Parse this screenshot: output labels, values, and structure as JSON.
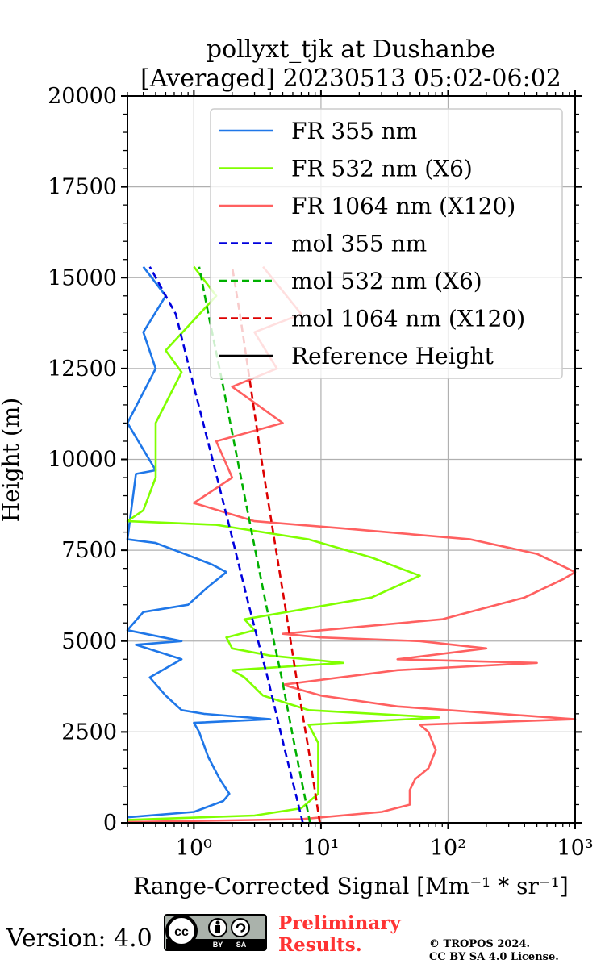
{
  "chart_data": {
    "type": "line",
    "title": [
      "pollyxt_tjk at Dushanbe",
      "[Averaged] 20230513 05:02-06:02"
    ],
    "xlabel": "Range-Corrected Signal [Mm⁻¹ * sr⁻¹]",
    "ylabel": "Height (m)",
    "xscale": "log",
    "xlim": [
      0.3,
      1000
    ],
    "ylim": [
      0,
      20000
    ],
    "xticks": [
      1,
      10,
      100,
      1000
    ],
    "xtick_labels": [
      "10⁰",
      "10¹",
      "10²",
      "10³"
    ],
    "yticks": [
      0,
      2500,
      5000,
      7500,
      10000,
      12500,
      15000,
      17500,
      20000
    ],
    "ytick_labels": [
      "0",
      "2500",
      "5000",
      "7500",
      "10000",
      "12500",
      "15000",
      "17500",
      "20000"
    ],
    "grid": true,
    "legend_position": "upper-right",
    "series": [
      {
        "name": "FR 355 nm",
        "color": "#1f77e8",
        "style": "solid",
        "points": [
          [
            0.3,
            150
          ],
          [
            1.0,
            300
          ],
          [
            1.7,
            600
          ],
          [
            1.9,
            800
          ],
          [
            1.6,
            1200
          ],
          [
            1.3,
            1800
          ],
          [
            1.1,
            2500
          ],
          [
            1.0,
            2750
          ],
          [
            4.0,
            2850
          ],
          [
            1.2,
            3000
          ],
          [
            0.8,
            3100
          ],
          [
            0.6,
            3500
          ],
          [
            0.45,
            4000
          ],
          [
            0.8,
            4500
          ],
          [
            0.35,
            4900
          ],
          [
            0.8,
            5000
          ],
          [
            0.3,
            5300
          ],
          [
            0.4,
            5800
          ],
          [
            0.9,
            6000
          ],
          [
            1.3,
            6500
          ],
          [
            1.8,
            6900
          ],
          [
            1.4,
            7100
          ],
          [
            1.0,
            7300
          ],
          [
            0.5,
            7700
          ],
          [
            0.3,
            7800
          ],
          [
            0.35,
            9600
          ],
          [
            0.5,
            9700
          ],
          [
            0.3,
            11000
          ],
          [
            0.5,
            12500
          ],
          [
            0.4,
            13500
          ],
          [
            0.6,
            14500
          ],
          [
            0.4,
            15300
          ]
        ]
      },
      {
        "name": "FR 532 nm (X6)",
        "color": "#80ff00",
        "style": "solid",
        "points": [
          [
            0.3,
            80
          ],
          [
            3.0,
            200
          ],
          [
            7.0,
            400
          ],
          [
            9.5,
            800
          ],
          [
            9.5,
            1500
          ],
          [
            9.5,
            2200
          ],
          [
            8.0,
            2700
          ],
          [
            85,
            2900
          ],
          [
            8.0,
            3100
          ],
          [
            3.5,
            3500
          ],
          [
            2.5,
            4000
          ],
          [
            2.0,
            4200
          ],
          [
            15,
            4400
          ],
          [
            4.0,
            4600
          ],
          [
            2.0,
            4800
          ],
          [
            1.8,
            5100
          ],
          [
            3.0,
            5300
          ],
          [
            2.5,
            5600
          ],
          [
            25,
            6200
          ],
          [
            60,
            6800
          ],
          [
            25,
            7300
          ],
          [
            8.0,
            7800
          ],
          [
            1.5,
            8200
          ],
          [
            0.3,
            8300
          ],
          [
            0.4,
            8600
          ],
          [
            0.5,
            9500
          ],
          [
            0.5,
            11000
          ],
          [
            0.8,
            12400
          ],
          [
            0.6,
            13000
          ],
          [
            1.5,
            14500
          ],
          [
            1.0,
            15300
          ]
        ]
      },
      {
        "name": "FR 1064 nm (X120)",
        "color": "#ff6060",
        "style": "solid",
        "points": [
          [
            0.3,
            20
          ],
          [
            7.0,
            100
          ],
          [
            30,
            300
          ],
          [
            50,
            500
          ],
          [
            50,
            900
          ],
          [
            55,
            1200
          ],
          [
            70,
            1500
          ],
          [
            80,
            2000
          ],
          [
            70,
            2500
          ],
          [
            60,
            2700
          ],
          [
            1000,
            2850
          ],
          [
            400,
            2950
          ],
          [
            40,
            3200
          ],
          [
            10,
            3500
          ],
          [
            5.0,
            3800
          ],
          [
            40,
            4200
          ],
          [
            500,
            4400
          ],
          [
            40,
            4500
          ],
          [
            200,
            4800
          ],
          [
            60,
            5000
          ],
          [
            10,
            5100
          ],
          [
            5.0,
            5200
          ],
          [
            90,
            5600
          ],
          [
            400,
            6200
          ],
          [
            800,
            6700
          ],
          [
            1000,
            6900
          ],
          [
            500,
            7400
          ],
          [
            150,
            7800
          ],
          [
            15,
            8100
          ],
          [
            3.0,
            8300
          ],
          [
            1.0,
            8800
          ],
          [
            2.0,
            9500
          ],
          [
            1.5,
            10500
          ],
          [
            5.0,
            11000
          ],
          [
            2.0,
            12000
          ],
          [
            4.5,
            12500
          ],
          [
            3.0,
            13500
          ],
          [
            7.0,
            14000
          ],
          [
            3.5,
            15300
          ]
        ]
      },
      {
        "name": "mol 355 nm",
        "color": "#0000dd",
        "style": "dashed",
        "points": [
          [
            7.2,
            0
          ],
          [
            5.2,
            2000
          ],
          [
            3.8,
            4000
          ],
          [
            2.7,
            6000
          ],
          [
            1.95,
            8000
          ],
          [
            1.4,
            10000
          ],
          [
            1.0,
            12000
          ],
          [
            0.72,
            14000
          ],
          [
            0.45,
            15300
          ]
        ]
      },
      {
        "name": "mol 532 nm (X6)",
        "color": "#00b000",
        "style": "dashed",
        "points": [
          [
            8.2,
            0
          ],
          [
            6.3,
            2000
          ],
          [
            4.9,
            4000
          ],
          [
            3.7,
            6000
          ],
          [
            2.85,
            8000
          ],
          [
            2.2,
            10000
          ],
          [
            1.7,
            12000
          ],
          [
            1.3,
            14000
          ],
          [
            1.1,
            15300
          ]
        ]
      },
      {
        "name": "mol 1064 nm (X120)",
        "color": "#dd0000",
        "style": "dashed",
        "points": [
          [
            9.8,
            0
          ],
          [
            8.0,
            2000
          ],
          [
            6.4,
            4000
          ],
          [
            5.2,
            6000
          ],
          [
            4.2,
            8000
          ],
          [
            3.4,
            10000
          ],
          [
            2.8,
            12000
          ],
          [
            2.3,
            14000
          ],
          [
            2.0,
            15300
          ]
        ]
      },
      {
        "name": "Reference Height",
        "color": "#000000",
        "style": "solid",
        "points": []
      }
    ]
  },
  "footer": {
    "version": "Version: 4.0",
    "preliminary": [
      "Preliminary",
      "Results."
    ],
    "copyright": [
      "© TROPOS 2024.",
      "CC BY SA 4.0 License."
    ],
    "badge": {
      "cc": "cc",
      "by": "BY",
      "sa": "SA"
    }
  }
}
